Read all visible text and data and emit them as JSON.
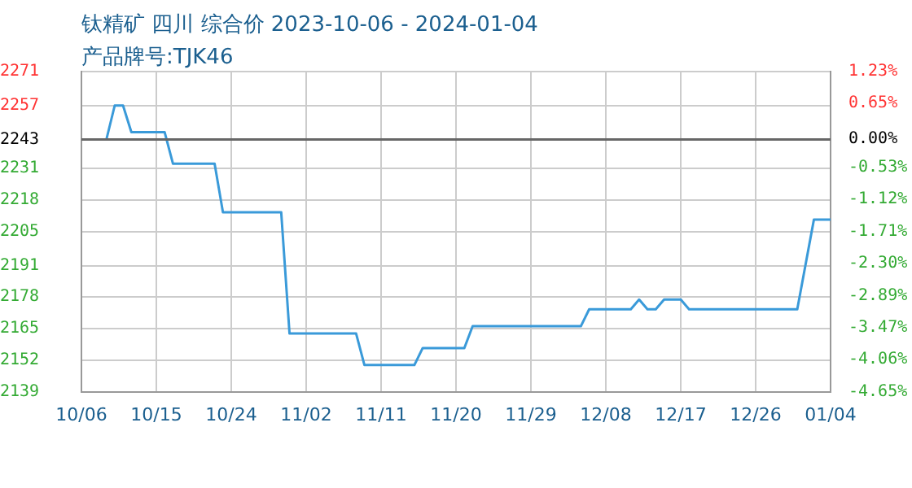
{
  "chart_data": {
    "type": "line",
    "title": "钛精矿 四川 综合价 2023-10-06 - 2024-01-04",
    "subtitle": "产品牌号:TJK46",
    "series": [
      {
        "color": "#3a9ad9",
        "x": [
          "2023-10-06",
          "2023-10-09",
          "2023-10-10",
          "2023-10-11",
          "2023-10-12",
          "2023-10-16",
          "2023-10-17",
          "2023-10-22",
          "2023-10-23",
          "2023-10-30",
          "2023-10-31",
          "2023-11-08",
          "2023-11-09",
          "2023-11-15",
          "2023-11-16",
          "2023-11-21",
          "2023-11-22",
          "2023-12-05",
          "2023-12-06",
          "2023-12-11",
          "2023-12-12",
          "2023-12-13",
          "2023-12-14",
          "2023-12-15",
          "2023-12-17",
          "2023-12-18",
          "2023-12-31",
          "2024-01-02",
          "2024-01-04"
        ],
        "values": [
          2243,
          2243,
          2257,
          2257,
          2246,
          2246,
          2233,
          2233,
          2213,
          2213,
          2163,
          2163,
          2150,
          2150,
          2157,
          2157,
          2166,
          2166,
          2173,
          2173,
          2177,
          2173,
          2173,
          2177,
          2177,
          2173,
          2173,
          2210,
          2210
        ]
      }
    ],
    "xlim": [
      "2023-10-06",
      "2024-01-04"
    ],
    "xticks": [
      {
        "value": "2023-10-06",
        "label": "10/06"
      },
      {
        "value": "2023-10-15",
        "label": "10/15"
      },
      {
        "value": "2023-10-24",
        "label": "10/24"
      },
      {
        "value": "2023-11-02",
        "label": "11/02"
      },
      {
        "value": "2023-11-11",
        "label": "11/11"
      },
      {
        "value": "2023-11-20",
        "label": "11/20"
      },
      {
        "value": "2023-11-29",
        "label": "11/29"
      },
      {
        "value": "2023-12-08",
        "label": "12/08"
      },
      {
        "value": "2023-12-17",
        "label": "12/17"
      },
      {
        "value": "2023-12-26",
        "label": "12/26"
      },
      {
        "value": "2024-01-04",
        "label": "01/04"
      }
    ],
    "ylim": [
      2139,
      2271
    ],
    "yticks": [
      2139,
      2152,
      2165,
      2178,
      2191,
      2205,
      2218,
      2231,
      2243,
      2257,
      2271
    ],
    "y2lim": [
      -4.65,
      1.23
    ],
    "y2ticks": [
      {
        "value": -4.65,
        "label": "-4.65%"
      },
      {
        "value": -4.06,
        "label": "-4.06%"
      },
      {
        "value": -3.47,
        "label": "-3.47%"
      },
      {
        "value": -2.89,
        "label": "-2.89%"
      },
      {
        "value": -2.3,
        "label": "-2.30%"
      },
      {
        "value": -1.71,
        "label": "-1.71%"
      },
      {
        "value": -1.12,
        "label": "-1.12%"
      },
      {
        "value": -0.53,
        "label": "-0.53%"
      },
      {
        "value": 0,
        "label": "0.00%"
      },
      {
        "value": 0.65,
        "label": "0.65%"
      },
      {
        "value": 1.23,
        "label": "1.23%"
      }
    ],
    "ref_lines": [
      {
        "axis": "y",
        "value": 2243,
        "color": "#666666"
      }
    ],
    "grid": true,
    "legend": false,
    "marker": "none",
    "line_style": "solid"
  }
}
